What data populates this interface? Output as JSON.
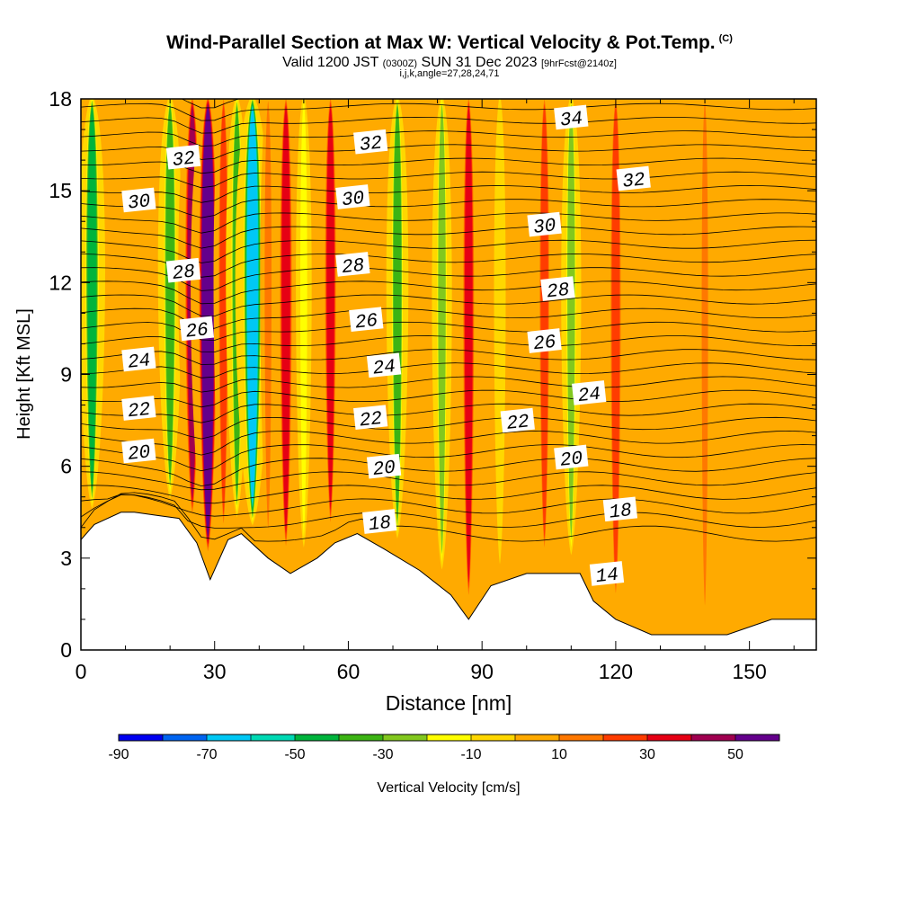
{
  "header": {
    "title": "Wind-Parallel Section at Max W: Vertical Velocity & Pot.Temp.",
    "title_mark": "(C)",
    "valid_prefix": "Valid 1200 JST",
    "valid_utc": "(0300Z)",
    "valid_date": "SUN 31 Dec 2023",
    "forecast": "[9hrFcst@2140z]",
    "indices": "i,j,k,angle=27,28,24,71"
  },
  "chart_data": {
    "type": "heatmap",
    "xlabel": "Distance [nm]",
    "ylabel": "Height [Kft MSL]",
    "xlim": [
      0,
      165
    ],
    "ylim": [
      0,
      18
    ],
    "x_ticks": [
      0,
      30,
      60,
      90,
      120,
      150
    ],
    "y_ticks": [
      0,
      3,
      6,
      9,
      12,
      15,
      18
    ],
    "colorbar": {
      "label": "Vertical Velocity [cm/s]",
      "tick_labels": [
        "-90",
        "-70",
        "-50",
        "-30",
        "-10",
        "10",
        "30",
        "50"
      ],
      "tick_values": [
        -90,
        -70,
        -50,
        -30,
        -10,
        10,
        30,
        50
      ],
      "min": -90,
      "max": 60,
      "step": 10,
      "colors": [
        "#0000f0",
        "#0064f0",
        "#00c8f5",
        "#00d9b4",
        "#00b43c",
        "#3cb414",
        "#82c81e",
        "#ffff00",
        "#ffd700",
        "#ffaa00",
        "#ff7800",
        "#ff3c00",
        "#e60014",
        "#a00050",
        "#64008c"
      ]
    },
    "vertical_velocity_columns": [
      {
        "x": 2.5,
        "w": -40
      },
      {
        "x": 20,
        "w": -35
      },
      {
        "x": 25,
        "w": 45
      },
      {
        "x": 28.5,
        "w": 60
      },
      {
        "x": 32,
        "w": 25
      },
      {
        "x": 35,
        "w": -30
      },
      {
        "x": 38.5,
        "w": -60
      },
      {
        "x": 42,
        "w": 15
      },
      {
        "x": 46,
        "w": 35
      },
      {
        "x": 50,
        "w": -15
      },
      {
        "x": 56,
        "w": 30
      },
      {
        "x": 71,
        "w": -30
      },
      {
        "x": 81,
        "w": -25
      },
      {
        "x": 87,
        "w": 30
      },
      {
        "x": 94,
        "w": -5
      },
      {
        "x": 104,
        "w": 25
      },
      {
        "x": 110,
        "w": -25
      },
      {
        "x": 120,
        "w": 28
      },
      {
        "x": 140,
        "w": 12
      }
    ],
    "terrain": {
      "x": [
        0,
        3,
        9,
        12,
        17,
        22,
        26,
        29,
        33,
        36,
        42,
        47,
        53,
        57,
        62,
        68,
        76,
        83,
        87,
        92,
        100,
        112,
        115,
        120,
        128,
        135,
        145,
        155,
        160,
        165
      ],
      "height_kft": [
        3.6,
        4.1,
        4.5,
        4.5,
        4.4,
        4.3,
        3.5,
        2.3,
        3.6,
        3.8,
        3.0,
        2.5,
        3.0,
        3.5,
        3.8,
        3.3,
        2.6,
        1.8,
        1.0,
        2.1,
        2.5,
        2.5,
        1.6,
        1.0,
        0.5,
        0.5,
        0.5,
        1.0,
        1.0,
        1.0
      ]
    },
    "isentrope_labels": [
      {
        "text": "32",
        "x": 23,
        "y": 16.1
      },
      {
        "text": "30",
        "x": 13,
        "y": 14.7
      },
      {
        "text": "28",
        "x": 23,
        "y": 12.4
      },
      {
        "text": "26",
        "x": 26,
        "y": 10.5
      },
      {
        "text": "24",
        "x": 13,
        "y": 9.5
      },
      {
        "text": "22",
        "x": 13,
        "y": 7.9
      },
      {
        "text": "20",
        "x": 13,
        "y": 6.5
      },
      {
        "text": "32",
        "x": 65,
        "y": 16.6
      },
      {
        "text": "30",
        "x": 61,
        "y": 14.8
      },
      {
        "text": "28",
        "x": 61,
        "y": 12.6
      },
      {
        "text": "26",
        "x": 64,
        "y": 10.8
      },
      {
        "text": "24",
        "x": 68,
        "y": 9.3
      },
      {
        "text": "22",
        "x": 65,
        "y": 7.6
      },
      {
        "text": "20",
        "x": 68,
        "y": 6.0
      },
      {
        "text": "18",
        "x": 67,
        "y": 4.2
      },
      {
        "text": "34",
        "x": 110,
        "y": 17.4
      },
      {
        "text": "32",
        "x": 124,
        "y": 15.4
      },
      {
        "text": "30",
        "x": 104,
        "y": 13.9
      },
      {
        "text": "28",
        "x": 107,
        "y": 11.8
      },
      {
        "text": "26",
        "x": 104,
        "y": 10.1
      },
      {
        "text": "24",
        "x": 114,
        "y": 8.4
      },
      {
        "text": "22",
        "x": 98,
        "y": 7.5
      },
      {
        "text": "20",
        "x": 110,
        "y": 6.3
      },
      {
        "text": "18",
        "x": 121,
        "y": 4.6
      },
      {
        "text": "14",
        "x": 118,
        "y": 2.5
      }
    ],
    "grid": false,
    "legend": "bottom"
  }
}
